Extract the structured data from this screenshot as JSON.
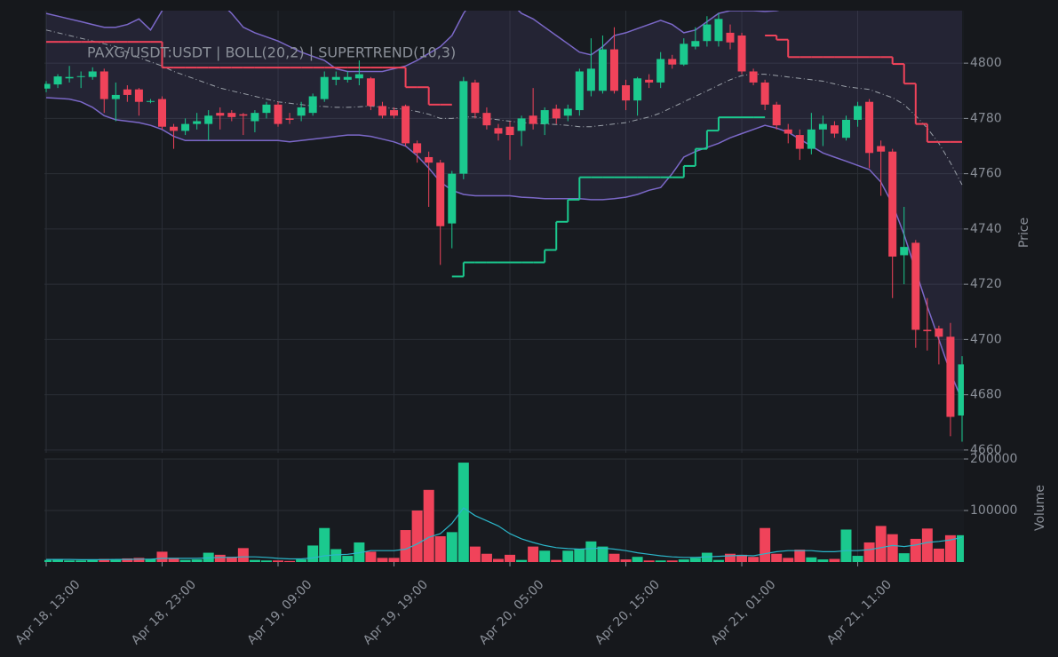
{
  "chart_data": {
    "type": "candlestick",
    "title": "PAXG/USDT:USDT | BOLL(20,2) | SUPERTREND(10,3)",
    "ylabel": "Price",
    "grid": true,
    "up_color": "#1bc98e",
    "down_color": "#f0435a",
    "categories": [
      "Apr 18, 13:00",
      null,
      null,
      null,
      null,
      null,
      null,
      null,
      null,
      null,
      "Apr 18, 23:00",
      null,
      null,
      null,
      null,
      null,
      null,
      null,
      null,
      null,
      "Apr 19, 09:00",
      null,
      null,
      null,
      null,
      null,
      null,
      null,
      null,
      null,
      "Apr 19, 19:00",
      null,
      null,
      null,
      null,
      null,
      null,
      null,
      null,
      null,
      "Apr 20, 05:00",
      null,
      null,
      null,
      null,
      null,
      null,
      null,
      null,
      null,
      "Apr 20, 15:00",
      null,
      null,
      null,
      null,
      null,
      null,
      null,
      null,
      null,
      "Apr 21, 01:00",
      null,
      null,
      null,
      null,
      null,
      null,
      null,
      null,
      null,
      "Apr 21, 11:00",
      null,
      null,
      null,
      null,
      null,
      null,
      null,
      null,
      null
    ],
    "open": [
      4790.8,
      4792.3,
      4794.5,
      4795,
      4795,
      4797,
      4787,
      4790.5,
      4790.5,
      4786,
      4787,
      4777,
      4775.5,
      4778,
      4778,
      4782,
      4782,
      4781.5,
      4779,
      4782,
      4785,
      4780,
      4781,
      4782,
      4787,
      4794,
      4794,
      4794.5,
      4794.5,
      4784.5,
      4783,
      4784.5,
      4771,
      4766,
      4764,
      4742,
      4760,
      4793,
      4782,
      4776.5,
      4777,
      4775.5,
      4781,
      4778,
      4783.5,
      4781,
      4783,
      4790,
      4790,
      4805,
      4792,
      4786.5,
      4794,
      4793,
      4801.5,
      4799.5,
      4806,
      4808,
      4808,
      4811,
      4810,
      4797,
      4793,
      4785,
      4776,
      4774,
      4769,
      4776,
      4777.5,
      4773,
      4779.5,
      4786,
      4770,
      4768,
      4730.5,
      4735,
      4703.5,
      4704,
      4701,
      4672.5
    ],
    "high": [
      4793.5,
      4796,
      4799,
      4797,
      4798.5,
      4798,
      4793,
      4792,
      4791,
      4787,
      4788,
      4778,
      4780,
      4782,
      4783,
      4784,
      4783,
      4782,
      4783,
      4786,
      4786,
      4782,
      4786,
      4789,
      4797,
      4797,
      4797,
      4801,
      4795,
      4786,
      4784,
      4785,
      4772,
      4768,
      4765,
      4761,
      4795,
      4794,
      4784,
      4778,
      4779,
      4781,
      4791,
      4784,
      4785,
      4785,
      4798,
      4809,
      4810,
      4813,
      4794,
      4795,
      4796,
      4804,
      4803,
      4809,
      4813,
      4817,
      4818,
      4814,
      4811,
      4798,
      4794,
      4786,
      4778,
      4776,
      4782,
      4781,
      4779,
      4781,
      4786,
      4787,
      4772,
      4769,
      4748,
      4736,
      4715,
      4705,
      4706,
      4694
    ],
    "low": [
      4789.5,
      4791,
      4793,
      4791,
      4794,
      4782,
      4779,
      4786,
      4781,
      4785.5,
      4776,
      4769,
      4774,
      4776,
      4772,
      4776,
      4779,
      4774,
      4775,
      4780,
      4777,
      4778,
      4779,
      4781,
      4786,
      4792,
      4793,
      4792,
      4783,
      4780,
      4780,
      4770,
      4764,
      4748,
      4727,
      4733,
      4758,
      4780,
      4776,
      4772,
      4765,
      4770,
      4776,
      4774,
      4778,
      4779,
      4781,
      4788,
      4789,
      4789,
      4783,
      4781,
      4791,
      4791,
      4798,
      4799,
      4805,
      4806,
      4806,
      4805,
      4796,
      4792,
      4783,
      4776,
      4771,
      4765,
      4767,
      4770,
      4773,
      4772,
      4777,
      4762,
      4752,
      4715,
      4720,
      4697,
      4696,
      4691,
      4665,
      4663
    ],
    "close": [
      4792.5,
      4795.2,
      4795,
      4795.3,
      4797,
      4787,
      4788.5,
      4788.5,
      4786,
      4786.3,
      4777,
      4775.5,
      4778,
      4779,
      4781,
      4781,
      4780.5,
      4781,
      4782,
      4785,
      4778,
      4779.5,
      4784,
      4788,
      4795,
      4795,
      4795,
      4796,
      4784.5,
      4781,
      4781,
      4771,
      4767.5,
      4764,
      4741,
      4760,
      4793.5,
      4782,
      4777.5,
      4774.5,
      4774,
      4780,
      4778,
      4783,
      4780,
      4783.5,
      4797,
      4798,
      4805,
      4790,
      4786.5,
      4794.5,
      4793,
      4801.5,
      4799.5,
      4807,
      4808,
      4814,
      4816,
      4807.5,
      4797,
      4793,
      4785,
      4777.5,
      4774.5,
      4769,
      4776,
      4778,
      4774.5,
      4779.5,
      4784.5,
      4767.5,
      4768,
      4730,
      4733.5,
      4703.5,
      4703,
      4701,
      4672,
      4691
    ],
    "bollinger": {
      "color": "#7b68c8",
      "middle_color": "#9aa0a8",
      "upper": [
        4818,
        4817,
        4816,
        4815,
        4814,
        4813,
        4813,
        4814,
        4816,
        4812,
        4819,
        4823,
        4825,
        4825,
        4824,
        4822,
        4818,
        4813,
        4811,
        4809.5,
        4808,
        4806,
        4804,
        4802.5,
        4801,
        4798,
        4797,
        4797,
        4797,
        4797,
        4798,
        4799,
        4801,
        4803.5,
        4806,
        4810,
        4818,
        4824,
        4826,
        4825,
        4822,
        4818,
        4816,
        4813,
        4810,
        4807,
        4804,
        4803,
        4806,
        4810,
        4811,
        4812.5,
        4814,
        4815.5,
        4814,
        4811,
        4812,
        4815,
        4818,
        4819,
        4819,
        4819,
        4818.7,
        4819,
        4820,
        4822,
        4825,
        4827,
        4829,
        4831,
        4833,
        4835,
        4837,
        4839,
        4841,
        4843,
        4845,
        4846,
        4847,
        4848
      ],
      "middle": [
        4812,
        4811,
        4810,
        4809,
        4808,
        4807,
        4806,
        4804,
        4802,
        4800.5,
        4799,
        4797,
        4795.5,
        4794,
        4792.5,
        4791,
        4790,
        4789,
        4788,
        4787,
        4786,
        4785.5,
        4785,
        4784.5,
        4784.3,
        4784,
        4784,
        4784.2,
        4784.5,
        4784,
        4783.6,
        4783.3,
        4782.5,
        4781.5,
        4780,
        4780,
        4780.5,
        4780.5,
        4780,
        4779.5,
        4779,
        4778.5,
        4778.2,
        4778,
        4777.8,
        4777.5,
        4777,
        4777,
        4777.5,
        4778,
        4778.5,
        4779.5,
        4780.5,
        4782,
        4784,
        4786,
        4788,
        4790,
        4792,
        4794,
        4795.5,
        4796,
        4796,
        4795.5,
        4795,
        4794.5,
        4794,
        4793.5,
        4792.5,
        4791.5,
        4791,
        4790.5,
        4789,
        4787.5,
        4785,
        4781,
        4776.5,
        4771,
        4764,
        4756
      ],
      "lower": [
        4787.5,
        4787.3,
        4787,
        4786,
        4784,
        4781,
        4779.5,
        4779,
        4778.5,
        4777.5,
        4776,
        4773.5,
        4772,
        4772,
        4772,
        4772,
        4772,
        4772,
        4772,
        4772,
        4772,
        4771.5,
        4772,
        4772.5,
        4773,
        4773.5,
        4774,
        4774,
        4773.5,
        4772.5,
        4771.5,
        4770,
        4766.5,
        4762,
        4757,
        4754,
        4752.5,
        4752,
        4752,
        4752,
        4752,
        4751.5,
        4751.3,
        4751,
        4751,
        4751,
        4751,
        4750.6,
        4750.6,
        4751,
        4751.5,
        4752.5,
        4754,
        4755,
        4760,
        4766,
        4768,
        4769.5,
        4771,
        4773,
        4774.5,
        4776,
        4777.5,
        4776.5,
        4775,
        4772.5,
        4770,
        4767.5,
        4766,
        4764.5,
        4763,
        4761.5,
        4757,
        4749,
        4738,
        4725,
        4712,
        4700,
        4688,
        4678
      ]
    },
    "supertrend": {
      "up": [
        null,
        null,
        null,
        null,
        null,
        null,
        null,
        null,
        null,
        null,
        null,
        null,
        null,
        null,
        null,
        null,
        null,
        null,
        null,
        null,
        null,
        null,
        null,
        null,
        null,
        null,
        null,
        null,
        null,
        null,
        null,
        null,
        null,
        null,
        null,
        4722.8,
        4727.9,
        4727.9,
        4727.9,
        4727.9,
        4727.9,
        4727.9,
        4727.9,
        4732.4,
        4742.6,
        4750.6,
        4758.7,
        4758.7,
        4758.7,
        4758.7,
        4758.7,
        4758.7,
        4758.7,
        4758.7,
        4758.7,
        4762.8,
        4769,
        4775.6,
        4780.4,
        4780.4,
        4780.4,
        4780.4,
        null,
        null,
        null,
        null,
        null,
        null,
        null,
        null,
        null,
        null,
        null,
        null,
        null,
        null,
        null,
        null,
        null,
        null
      ],
      "down": [
        4807.7,
        4807.7,
        4807.7,
        4807.7,
        4807.7,
        4807.7,
        4807.7,
        4807.7,
        4807.7,
        4807.7,
        4798.4,
        4798.4,
        4798.4,
        4798.4,
        4798.4,
        4798.4,
        4798.4,
        4798.4,
        4798.4,
        4798.4,
        4798.4,
        4798.4,
        4798.4,
        4798.4,
        4798.4,
        4798.4,
        4798.4,
        4798.4,
        4798.4,
        4798.4,
        4798.4,
        4791.3,
        4791.3,
        4785,
        4785,
        null,
        null,
        null,
        null,
        null,
        null,
        null,
        null,
        null,
        null,
        null,
        null,
        null,
        null,
        null,
        null,
        null,
        null,
        null,
        null,
        null,
        null,
        null,
        null,
        null,
        null,
        null,
        4810,
        4808.5,
        4802.2,
        4802.2,
        4802.2,
        4802.2,
        4802.2,
        4802.2,
        4802.2,
        4802.2,
        4802.2,
        4799.7,
        4792.6,
        4778,
        4771.5,
        4771.5,
        4771.5,
        4771.5
      ]
    },
    "ylim": [
      4659,
      4819
    ],
    "yticks": [
      4660,
      4680,
      4700,
      4720,
      4740,
      4760,
      4780,
      4800
    ],
    "volume_panel": {
      "ylabel": "Volume",
      "values": [
        4000,
        5000,
        3000,
        3000,
        4000,
        6000,
        5000,
        7000,
        8000,
        6000,
        20000,
        8000,
        4000,
        5000,
        18000,
        14000,
        10000,
        27000,
        4000,
        3000,
        3000,
        2000,
        5000,
        32000,
        66000,
        25000,
        12000,
        38000,
        20000,
        8000,
        8000,
        62000,
        100000,
        140000,
        50000,
        58000,
        193000,
        30000,
        16000,
        6000,
        14000,
        4000,
        30000,
        22000,
        4000,
        22000,
        25000,
        40000,
        30000,
        16000,
        5000,
        10000,
        3000,
        3000,
        3000,
        5000,
        8000,
        18000,
        4000,
        16000,
        14000,
        10000,
        66000,
        16000,
        8000,
        24000,
        9000,
        5000,
        6000,
        63000,
        12000,
        38000,
        70000,
        54000,
        17000,
        45000,
        65000,
        26000,
        52000,
        52000
      ],
      "ma": {
        "color": "#2bb5c8",
        "values": [
          5000,
          5000,
          5000,
          4500,
          4500,
          4500,
          5000,
          5000,
          5500,
          5500,
          7000,
          7000,
          7000,
          7000,
          8000,
          9000,
          9000,
          10000,
          10000,
          9000,
          7000,
          6000,
          6000,
          8000,
          12000,
          14000,
          15000,
          18000,
          22000,
          22000,
          22000,
          25000,
          35000,
          48000,
          55000,
          75000,
          105000,
          90000,
          80000,
          70000,
          55000,
          45000,
          38000,
          32000,
          28000,
          26000,
          25000,
          26000,
          27000,
          25000,
          22000,
          18000,
          15000,
          12000,
          10000,
          9000,
          9000,
          10000,
          11000,
          12000,
          13000,
          12000,
          16000,
          20000,
          22000,
          22000,
          22000,
          20000,
          20000,
          22000,
          22000,
          24000,
          28000,
          32000,
          30000,
          33000,
          38000,
          40000,
          43000,
          48000
        ]
      },
      "ylim": [
        0,
        200000
      ],
      "yticks": [
        100000,
        200000
      ]
    }
  }
}
